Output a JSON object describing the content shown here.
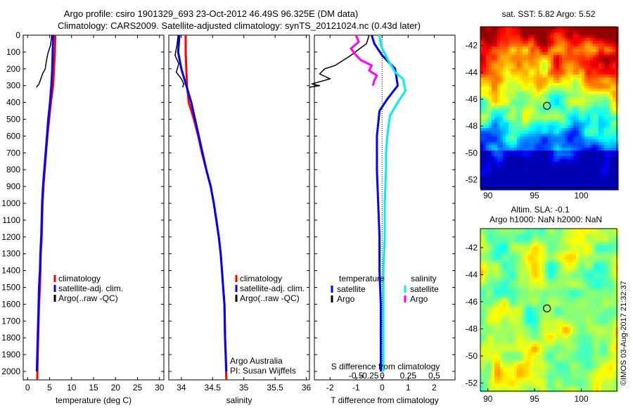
{
  "header": {
    "title_line1": "Argo profile: csiro 1901329_693 23-Oct-2012 46.49S 96.325E (DM data)",
    "title_line2": "Climatology: CARS2009. Satellite-adjusted climatology: synTS_20121024.nc (0.43d later)"
  },
  "credit": "©IMOS 03-Aug-2017 21:32:37",
  "colors": {
    "red": "#ff0000",
    "blue": "#0000ff",
    "black": "#000000",
    "cyan": "#00eeee",
    "magenta": "#ff00ff"
  },
  "chart_data": [
    {
      "id": "temperature",
      "type": "line",
      "xlabel": "temperature (deg C)",
      "ylabel": "",
      "xlim": [
        -1,
        31
      ],
      "ylim": [
        0,
        2050
      ],
      "xticks": [
        0,
        5,
        10,
        15,
        20,
        25,
        30
      ],
      "yticks": [
        0,
        100,
        200,
        300,
        400,
        500,
        600,
        700,
        800,
        900,
        1000,
        1100,
        1200,
        1300,
        1400,
        1500,
        1600,
        1700,
        1800,
        1900,
        2000
      ],
      "legend": [
        "climatology",
        "satellite-adj. clim.",
        "Argo(..raw -QC)"
      ],
      "series": [
        {
          "name": "climatology",
          "color": "red",
          "x": [
            6.3,
            6.2,
            6.0,
            5.8,
            5.3,
            4.9,
            4.5,
            4.2,
            3.9,
            3.6,
            3.4,
            3.2,
            3.0,
            2.9,
            2.8,
            2.6,
            2.5,
            2.4,
            2.3,
            2.2
          ],
          "y": [
            0,
            100,
            200,
            300,
            400,
            500,
            600,
            700,
            800,
            900,
            1000,
            1200,
            1300,
            1400,
            1500,
            1600,
            1700,
            1800,
            1900,
            2050
          ]
        },
        {
          "name": "satellite-adj. clim.",
          "color": "blue",
          "x": [
            5.8,
            5.7,
            5.6,
            5.4,
            5.1,
            4.7,
            4.4,
            4.1,
            3.8,
            3.5,
            3.3,
            3.1,
            2.9,
            2.8,
            2.6,
            2.5,
            2.4,
            2.3,
            2.2,
            2.1
          ],
          "y": [
            0,
            100,
            200,
            300,
            400,
            500,
            600,
            700,
            800,
            900,
            1000,
            1200,
            1300,
            1400,
            1500,
            1600,
            1700,
            1800,
            1900,
            2000
          ]
        },
        {
          "name": "Argo(..raw -QC)",
          "color": "black",
          "x": [
            5.5,
            5.2,
            4.6,
            4.3,
            4.0,
            3.4,
            3.0,
            2.6,
            2.0
          ],
          "y": [
            0,
            60,
            110,
            150,
            200,
            230,
            260,
            290,
            310
          ]
        }
      ],
      "annotations": []
    },
    {
      "id": "salinity",
      "type": "line",
      "xlabel": "salinity",
      "ylabel": "",
      "xlim": [
        33.8,
        36.05
      ],
      "ylim": [
        0,
        2050
      ],
      "xticks": [
        34,
        34.5,
        35,
        35.5,
        36
      ],
      "xticklabels": [
        "34",
        "34.5",
        "35",
        "35.5",
        "36"
      ],
      "legend": [
        "climatology",
        "satellite-adj. clim.",
        "Argo(..raw -QC)"
      ],
      "series": [
        {
          "name": "climatology",
          "color": "red",
          "x": [
            34.07,
            34.07,
            34.08,
            34.09,
            34.12,
            34.2,
            34.27,
            34.33,
            34.4,
            34.47,
            34.52,
            34.56,
            34.6,
            34.63,
            34.65,
            34.67,
            34.69,
            34.7,
            34.71,
            34.72
          ],
          "y": [
            0,
            100,
            200,
            300,
            400,
            500,
            600,
            700,
            800,
            900,
            1000,
            1100,
            1200,
            1300,
            1400,
            1500,
            1600,
            1800,
            1900,
            2050
          ]
        },
        {
          "name": "satellite-adj. clim.",
          "color": "blue",
          "x": [
            33.97,
            33.95,
            34.0,
            34.08,
            34.16,
            34.22,
            34.28,
            34.34,
            34.4,
            34.47,
            34.52,
            34.56,
            34.6,
            34.63,
            34.65,
            34.67,
            34.69,
            34.7,
            34.71,
            34.72
          ],
          "y": [
            0,
            100,
            200,
            300,
            400,
            500,
            600,
            700,
            800,
            900,
            1000,
            1100,
            1200,
            1300,
            1400,
            1500,
            1600,
            1800,
            1900,
            2000
          ]
        },
        {
          "name": "Argo(..raw -QC)",
          "color": "black",
          "x": [
            33.95,
            33.93,
            33.9,
            33.96,
            33.92,
            34.0,
            34.04,
            34.02
          ],
          "y": [
            0,
            60,
            120,
            170,
            220,
            260,
            290,
            310
          ]
        }
      ],
      "annotations": [
        "Argo Australia",
        "PI: Susan Wijffels"
      ]
    },
    {
      "id": "difference",
      "type": "line",
      "xlabel": "T difference from climatology",
      "x2label": "S difference from climatology",
      "ylabel": "",
      "xlim": [
        -2.6,
        2.8
      ],
      "ylim": [
        0,
        2050
      ],
      "xticks": [
        -2,
        -1,
        0,
        1,
        2
      ],
      "x2ticks": [
        -1,
        -0.5,
        0,
        1,
        2
      ],
      "x2ticklabels": [
        "-0.5",
        "-0.25",
        "0",
        "0.25",
        "0.5"
      ],
      "legend_temperature_title": "temperature",
      "legend_salinity_title": "salinity",
      "legend_temperature": [
        "satellite",
        "Argo"
      ],
      "legend_salinity": [
        "satellite",
        "Argo"
      ],
      "series": [
        {
          "name": "satellite",
          "group": "temperature",
          "color": "blue",
          "x": [
            -0.4,
            -0.3,
            0.0,
            0.5,
            0.6,
            0.2,
            -0.1,
            -0.2,
            -0.2,
            -0.2,
            -0.15,
            -0.1,
            -0.1,
            -0.05,
            -0.05,
            -0.05,
            -0.05
          ],
          "y": [
            0,
            50,
            120,
            200,
            300,
            380,
            450,
            600,
            700,
            800,
            1000,
            1200,
            1400,
            1600,
            1800,
            1900,
            2000
          ]
        },
        {
          "name": "Argo",
          "group": "temperature",
          "color": "black",
          "x": [
            -0.5,
            -0.6,
            -1.2,
            -1.5,
            -1.8,
            -2.2,
            -2.4,
            -2.0,
            -2.7,
            -2.4,
            -2.8
          ],
          "y": [
            0,
            50,
            120,
            150,
            180,
            200,
            230,
            260,
            290,
            300,
            310
          ]
        },
        {
          "name": "satellite",
          "group": "salinity",
          "color": "cyan",
          "x": [
            -0.1,
            -0.05,
            0.2,
            0.5,
            0.8,
            0.9,
            0.6,
            0.3,
            0.2,
            0.15,
            0.15,
            0.1,
            0.1,
            0.05,
            0.05,
            0.05,
            0.05,
            0.05
          ],
          "y": [
            0,
            60,
            140,
            220,
            260,
            330,
            400,
            480,
            600,
            700,
            800,
            1000,
            1200,
            1400,
            1600,
            1800,
            1900,
            2000
          ]
        },
        {
          "name": "Argo",
          "group": "salinity",
          "color": "magenta",
          "x": [
            -1.0,
            -0.9,
            -1.2,
            -1.0,
            -0.8,
            -0.4,
            -0.5,
            -0.2,
            -0.3,
            -0.35
          ],
          "y": [
            0,
            40,
            80,
            120,
            150,
            180,
            210,
            240,
            270,
            300
          ]
        }
      ],
      "annotations": []
    },
    {
      "id": "sst-map",
      "type": "heatmap",
      "title": "sat. SST: 5.82 Argo: 5.52",
      "xlim": [
        89.2,
        103.8
      ],
      "ylim": [
        -52.6,
        -40.6
      ],
      "xticks": [
        90,
        95,
        100
      ],
      "yticks": [
        -42,
        -44,
        -46,
        -48,
        -50,
        -52
      ],
      "marker": {
        "lon": 96.325,
        "lat": -46.49
      }
    },
    {
      "id": "sla-map",
      "type": "heatmap",
      "title_line1": "Altim. SLA: -0.1",
      "title_line2": "Argo h1000: NaN h2000: NaN",
      "xlim": [
        89.2,
        103.8
      ],
      "ylim": [
        -52.6,
        -40.6
      ],
      "xticks": [
        90,
        95,
        100
      ],
      "yticks": [
        -42,
        -44,
        -46,
        -48,
        -50,
        -52
      ],
      "marker": {
        "lon": 96.325,
        "lat": -46.49
      }
    }
  ]
}
